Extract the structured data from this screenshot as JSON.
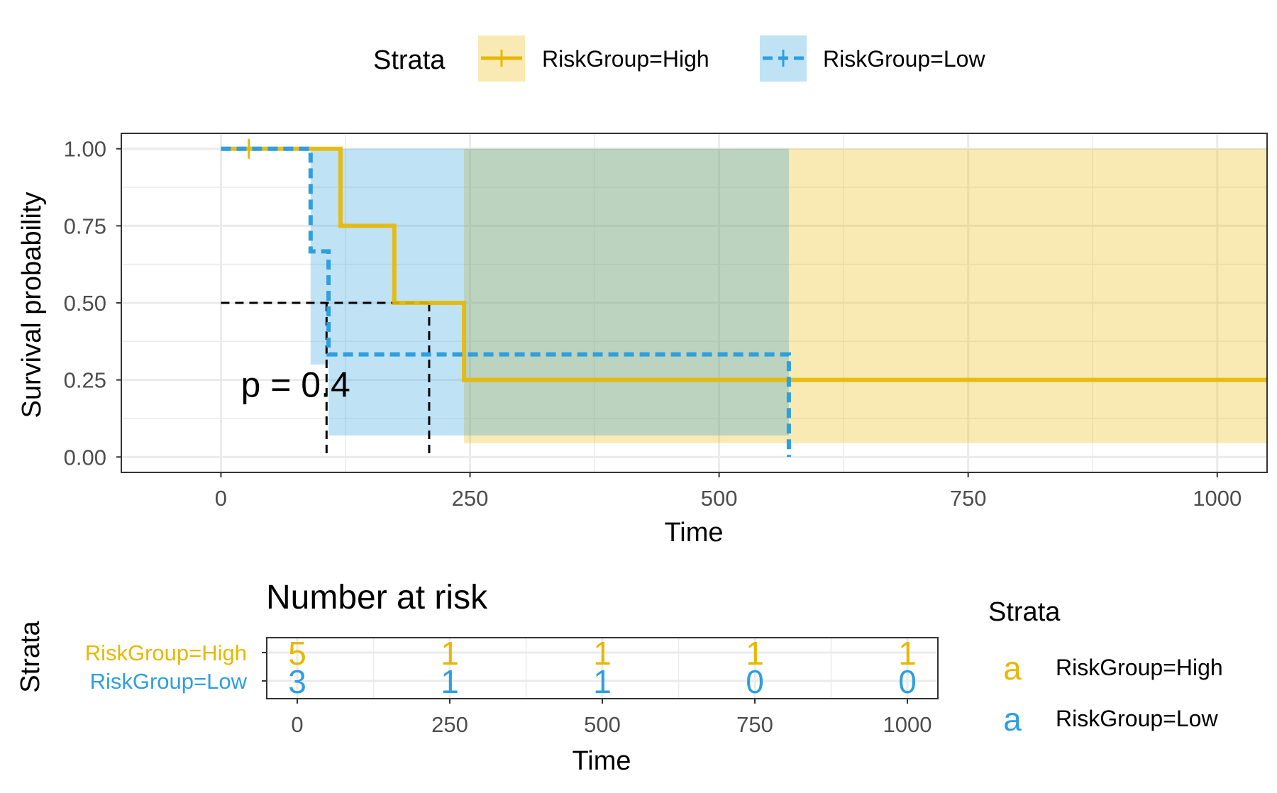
{
  "colors": {
    "high": "#E7B800",
    "low": "#2E9FDF",
    "grid": "#EBEBEB",
    "axis_text": "#4D4D4D",
    "text": "#000000"
  },
  "legend": {
    "title": "Strata",
    "items": [
      "RiskGroup=High",
      "RiskGroup=Low"
    ]
  },
  "chart_data": [
    {
      "type": "line",
      "subtype": "kaplan-meier step",
      "xlabel": "Time",
      "ylabel": "Survival probability",
      "xlim": [
        -100,
        1050
      ],
      "ylim": [
        -0.05,
        1.05
      ],
      "xticks": [
        0,
        250,
        500,
        750,
        1000
      ],
      "ytick_labels": [
        "0.00",
        "0.25",
        "0.50",
        "0.75",
        "1.00"
      ],
      "yticks": [
        0,
        0.25,
        0.5,
        0.75,
        1.0
      ],
      "grid": true,
      "legend_position": "top",
      "annotation": "p = 0.4",
      "median_survival": {
        "y": 0.5,
        "x": [
          106,
          209
        ]
      },
      "series": [
        {
          "name": "RiskGroup=High",
          "color": "#E7B800",
          "line_style": "solid",
          "steps": [
            [
              0,
              1.0
            ],
            [
              120,
              0.75
            ],
            [
              174,
              0.5
            ],
            [
              244,
              0.25
            ],
            [
              1050,
              0.25
            ]
          ],
          "censor": [
            [
              28,
              1.0
            ]
          ],
          "ci": [
            [
              0,
              1.0,
              1.0
            ],
            [
              120,
              1.0,
              1.0
            ],
            [
              174,
              1.0,
              1.0
            ],
            [
              244,
              1.0,
              0.045
            ],
            [
              1050,
              1.0,
              0.045
            ]
          ]
        },
        {
          "name": "RiskGroup=Low",
          "color": "#2E9FDF",
          "line_style": "dashed",
          "steps": [
            [
              0,
              1.0
            ],
            [
              90,
              0.667
            ],
            [
              108,
              0.333
            ],
            [
              570,
              0.0
            ]
          ],
          "censor": [],
          "ci": [
            [
              0,
              1.0,
              1.0
            ],
            [
              90,
              1.0,
              0.3
            ],
            [
              108,
              1.0,
              0.07
            ],
            [
              570,
              1.0,
              0.07
            ]
          ]
        }
      ]
    },
    {
      "type": "table",
      "title": "Number at risk",
      "xlabel": "Time",
      "ylabel": "Strata",
      "xlim": [
        -50,
        1050
      ],
      "xticks": [
        0,
        250,
        500,
        750,
        1000
      ],
      "rows": [
        {
          "name": "RiskGroup=High",
          "color": "#E7B800",
          "values": [
            5,
            1,
            1,
            1,
            1
          ]
        },
        {
          "name": "RiskGroup=Low",
          "color": "#2E9FDF",
          "values": [
            3,
            1,
            1,
            0,
            0
          ]
        }
      ]
    }
  ],
  "table_legend": {
    "title": "Strata",
    "glyph": "a",
    "items": [
      "RiskGroup=High",
      "RiskGroup=Low"
    ]
  }
}
